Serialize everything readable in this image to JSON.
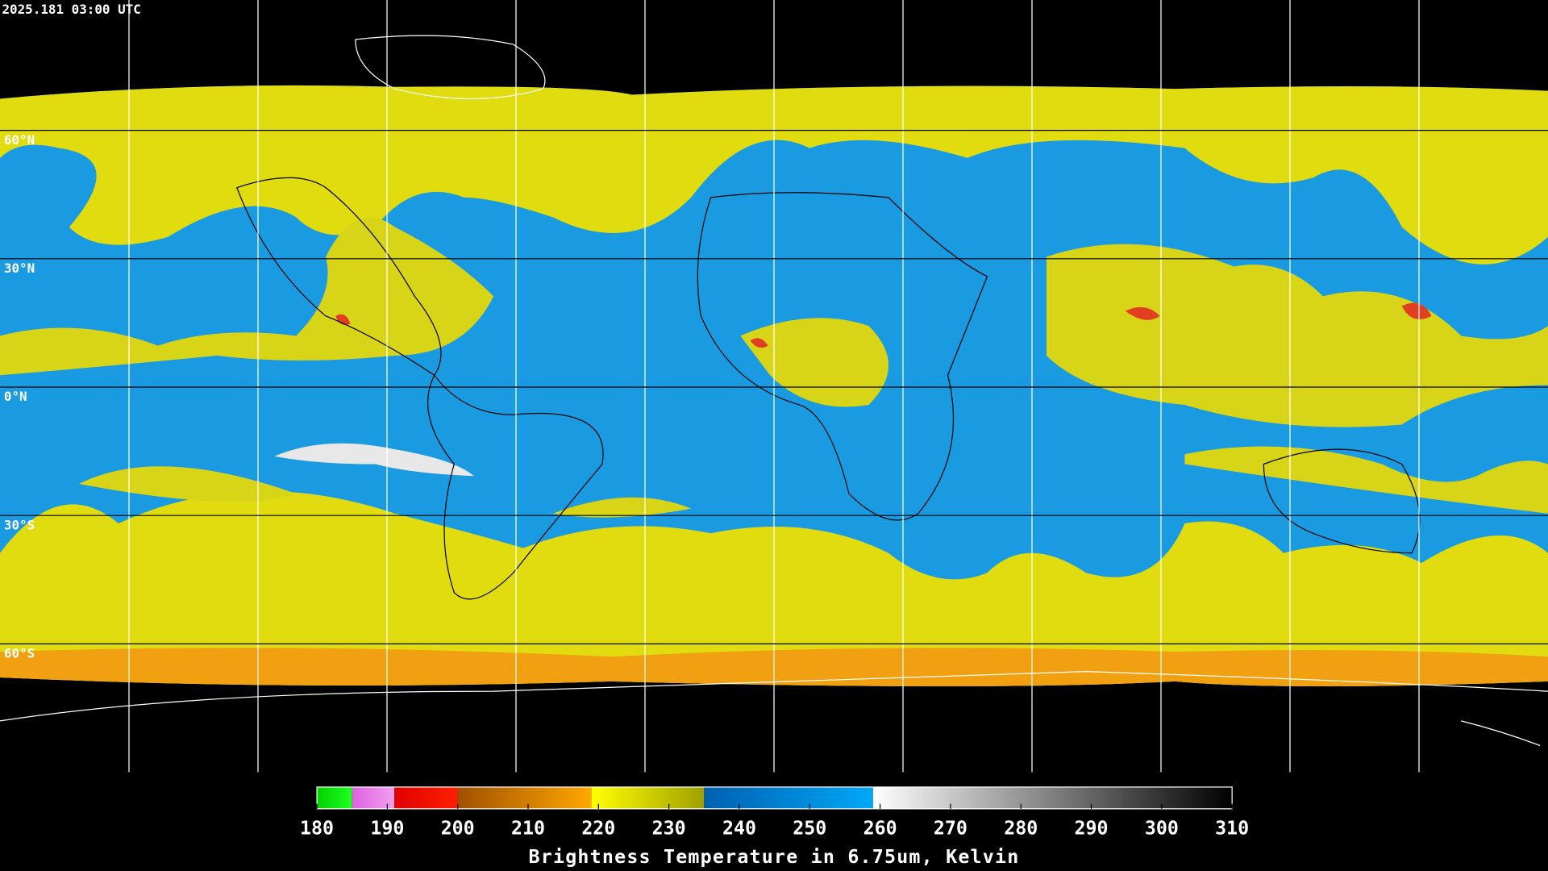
{
  "map": {
    "timestamp": "2025.181 03:00 UTC",
    "lonlim": [
      -180,
      180
    ],
    "latlim": [
      -90,
      90
    ],
    "lon_grid": [
      -150,
      -120,
      -90,
      -60,
      -30,
      0,
      30,
      60,
      90,
      120,
      150
    ],
    "lat_ticks": [
      {
        "value": 60,
        "label": "60°N"
      },
      {
        "value": 30,
        "label": "30°N"
      },
      {
        "value": 0,
        "label": "0°N"
      },
      {
        "value": -30,
        "label": "30°S"
      },
      {
        "value": -60,
        "label": "60°S"
      }
    ]
  },
  "colorbar": {
    "title": "Brightness Temperature in 6.75um, Kelvin",
    "lim": [
      180,
      310
    ],
    "ticks": [
      180,
      190,
      200,
      210,
      220,
      230,
      240,
      250,
      260,
      270,
      280,
      290,
      300,
      310
    ],
    "segments": [
      {
        "from": 180,
        "to": 185,
        "colors": [
          "#00d000",
          "#20ff20"
        ]
      },
      {
        "from": 185,
        "to": 191,
        "colors": [
          "#e060e0",
          "#f0a0f0"
        ]
      },
      {
        "from": 191,
        "to": 200,
        "colors": [
          "#e00000",
          "#ff2000"
        ]
      },
      {
        "from": 200,
        "to": 219,
        "colors": [
          "#a05000",
          "#ffa800"
        ]
      },
      {
        "from": 219,
        "to": 235,
        "colors": [
          "#ffff00",
          "#a0a000"
        ]
      },
      {
        "from": 235,
        "to": 259,
        "colors": [
          "#0060b0",
          "#00a8f8"
        ]
      },
      {
        "from": 259,
        "to": 310,
        "colors": [
          "#ffffff",
          "#000000"
        ]
      }
    ]
  }
}
